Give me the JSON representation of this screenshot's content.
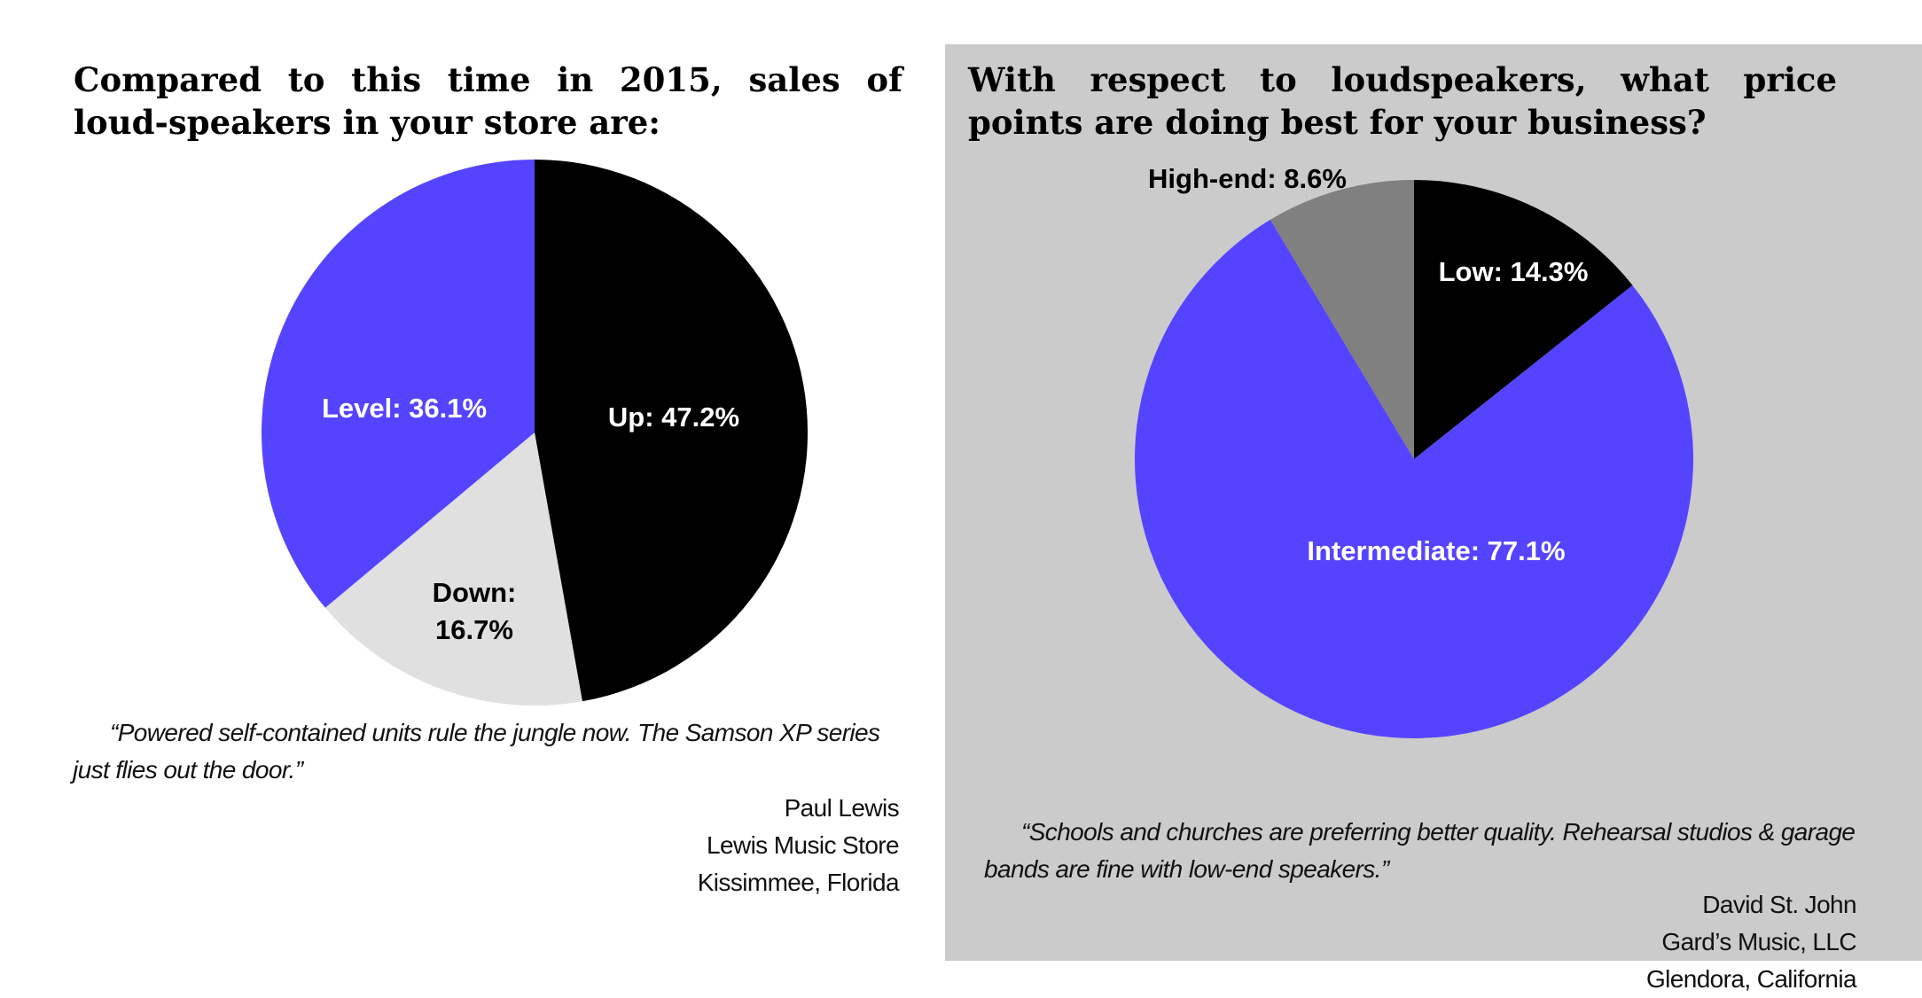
{
  "chart_data": [
    {
      "type": "pie",
      "title": "Compared to this time in 2015, sales of loud-speakers in your store are:",
      "categories": [
        "Up",
        "Down",
        "Level"
      ],
      "values": [
        47.2,
        16.7,
        36.1
      ],
      "labels": {
        "Up": [
          "Up: 47.2%"
        ],
        "Down": [
          "Down:",
          "16.7%"
        ],
        "Level": [
          "Level: 36.1%"
        ]
      },
      "colors": [
        "#000000",
        "#e0e0e0",
        "#5544ff"
      ],
      "label_colors": [
        "#ffffff",
        "#000000",
        "#ffffff"
      ],
      "quote": "“Powered self-contained units rule the jungle now. The Samson XP series just flies out the door.”",
      "attribution": [
        "Paul Lewis",
        "Lewis Music Store",
        "Kissimmee, Florida"
      ]
    },
    {
      "type": "pie",
      "title": "With respect to loudspeakers, what price points are doing best for your business?",
      "categories": [
        "Low",
        "Intermediate",
        "High-end"
      ],
      "values": [
        14.3,
        77.1,
        8.6
      ],
      "labels": {
        "Low": [
          "Low: 14.3%"
        ],
        "Intermediate": [
          "Intermediate: 77.1%"
        ],
        "High-end": [
          "High-end: 8.6%"
        ]
      },
      "colors": [
        "#000000",
        "#5544ff",
        "#808080"
      ],
      "label_colors": [
        "#ffffff",
        "#ffffff",
        "#000000"
      ],
      "quote": "“Schools and churches are preferring better quality. Rehearsal studios & garage bands are fine with low-end speakers.”",
      "attribution": [
        "David St. John",
        "Gard’s Music, LLC",
        "Glendora, California"
      ]
    }
  ]
}
